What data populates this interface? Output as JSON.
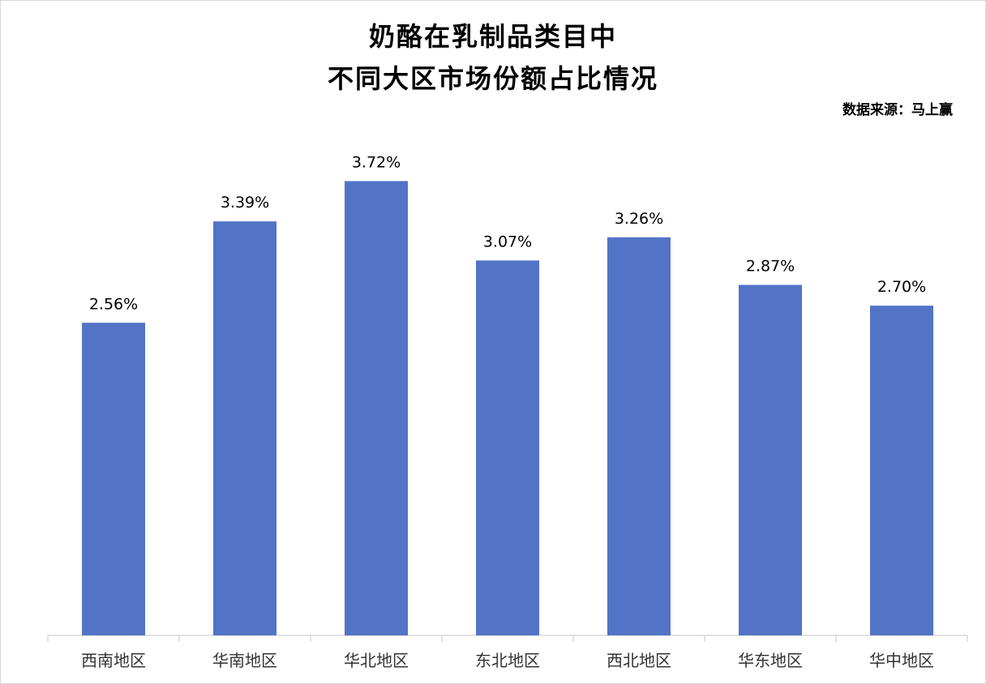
{
  "chart_data": {
    "type": "bar",
    "title_lines": [
      "奶酪在乳制品类目中",
      "不同大区市场份额占比情况"
    ],
    "source": "数据来源：马上赢",
    "categories": [
      "西南地区",
      "华南地区",
      "华北地区",
      "东北地区",
      "西北地区",
      "华东地区",
      "华中地区"
    ],
    "values": [
      2.56,
      3.39,
      3.72,
      3.07,
      3.26,
      2.87,
      2.7
    ],
    "value_labels": [
      "2.56%",
      "3.39%",
      "3.72%",
      "3.07%",
      "3.26%",
      "2.87%",
      "2.70%"
    ],
    "ylim": [
      0,
      4.4
    ],
    "grid": false,
    "bar_color": "#5273c6",
    "xlabel": "",
    "ylabel": ""
  }
}
